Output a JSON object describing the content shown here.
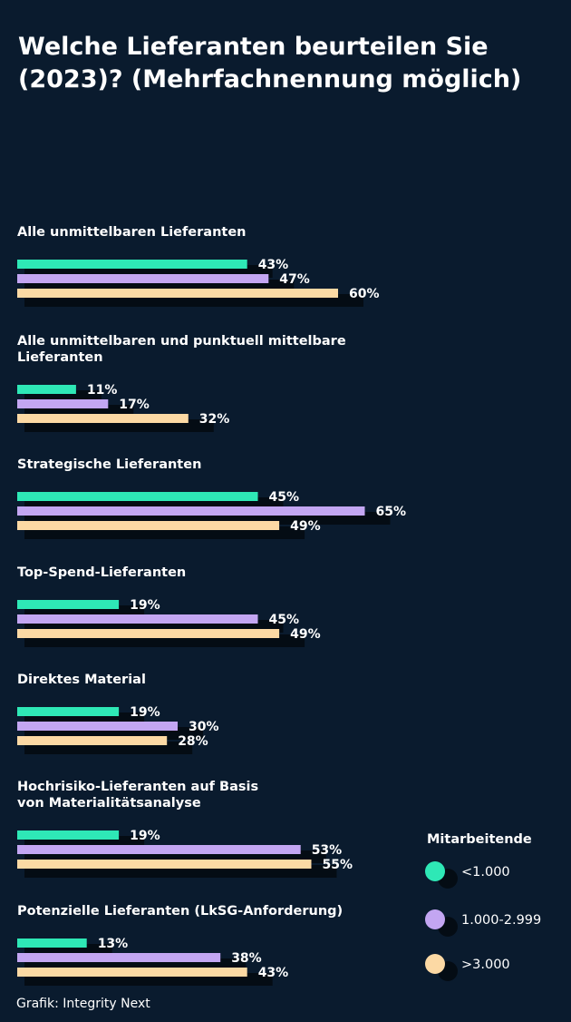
{
  "chart_data": {
    "type": "bar",
    "orientation": "horizontal",
    "title": "Welche Lieferanten beurteilen Sie (2023)? (Mehrfachnennung möglich)",
    "title_lines": [
      "Welche Lieferanten beurteilen Sie",
      "(2023)? (Mehrfachnennung möglich)"
    ],
    "categories": [
      {
        "lines": [
          "Alle unmittelbaren Lieferanten"
        ]
      },
      {
        "lines": [
          "Alle unmittelbaren und punktuell mittelbare",
          "Lieferanten"
        ]
      },
      {
        "lines": [
          "Strategische Lieferanten"
        ]
      },
      {
        "lines": [
          "Top-Spend-Lieferanten"
        ]
      },
      {
        "lines": [
          "Direktes Material"
        ]
      },
      {
        "lines": [
          "Hochrisiko-Lieferanten auf Basis",
          "von Materialitätsanalyse"
        ]
      },
      {
        "lines": [
          "Potenzielle Lieferanten (LkSG-Anforderung)"
        ]
      }
    ],
    "series": [
      {
        "name": "<1.000",
        "color": "#2ee8b6",
        "values": [
          43,
          11,
          45,
          19,
          19,
          19,
          13
        ]
      },
      {
        "name": "1.000-2.999",
        "color": "#c3a6f2",
        "values": [
          47,
          17,
          65,
          45,
          30,
          53,
          38
        ]
      },
      {
        "name": ">3.000",
        "color": "#fcd9a4",
        "values": [
          60,
          32,
          49,
          49,
          28,
          55,
          43
        ]
      }
    ],
    "value_suffix": "%",
    "xlim": [
      0,
      100
    ],
    "grid": false,
    "legend": {
      "title": "Mitarbeitende",
      "position": "right"
    },
    "source": "Grafik: Integrity Next"
  }
}
